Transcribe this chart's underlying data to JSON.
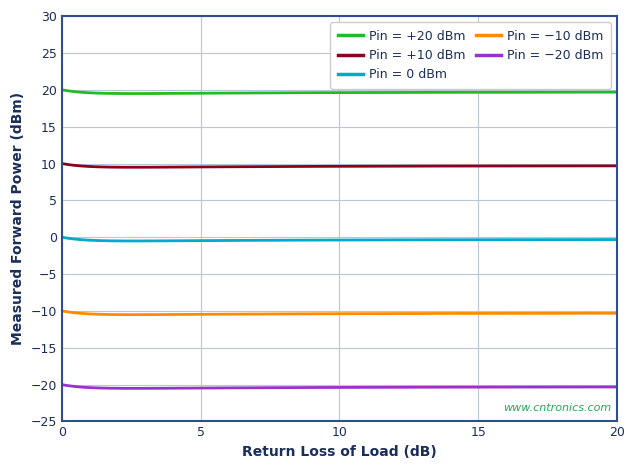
{
  "title": "",
  "xlabel": "Return Loss of Load (dB)",
  "ylabel": "Measured Forward Power (dBm)",
  "xlim": [
    0,
    20
  ],
  "ylim": [
    -25,
    30
  ],
  "xticks": [
    0,
    5,
    10,
    15,
    20
  ],
  "yticks": [
    -25,
    -20,
    -15,
    -10,
    -5,
    0,
    5,
    10,
    15,
    20,
    25,
    30
  ],
  "fig_bg_color": "#ffffff",
  "plot_bg_color": "#ffffff",
  "grid_color": "#b8c8d8",
  "series": [
    {
      "label": "Pin = +20 dBm",
      "color": "#22bb22",
      "pin": 20
    },
    {
      "label": "Pin = +10 dBm",
      "color": "#8b0020",
      "pin": 10
    },
    {
      "label": "Pin = 0 dBm",
      "color": "#00aacc",
      "pin": 0
    },
    {
      "label": "Pin = −10 dBm",
      "color": "#ff8c00",
      "pin": -10
    },
    {
      "label": "Pin = −20 dBm",
      "color": "#9932cc",
      "pin": -20
    }
  ],
  "legend_text_color": "#1a2e5a",
  "axis_color": "#1a2e5a",
  "axis_label_color": "#1a2e5a",
  "watermark": "www.cntronics.com",
  "watermark_color": "#22aa55",
  "linewidth": 2.0,
  "legend_fontsize": 9,
  "axis_fontsize": 10,
  "tick_fontsize": 9
}
